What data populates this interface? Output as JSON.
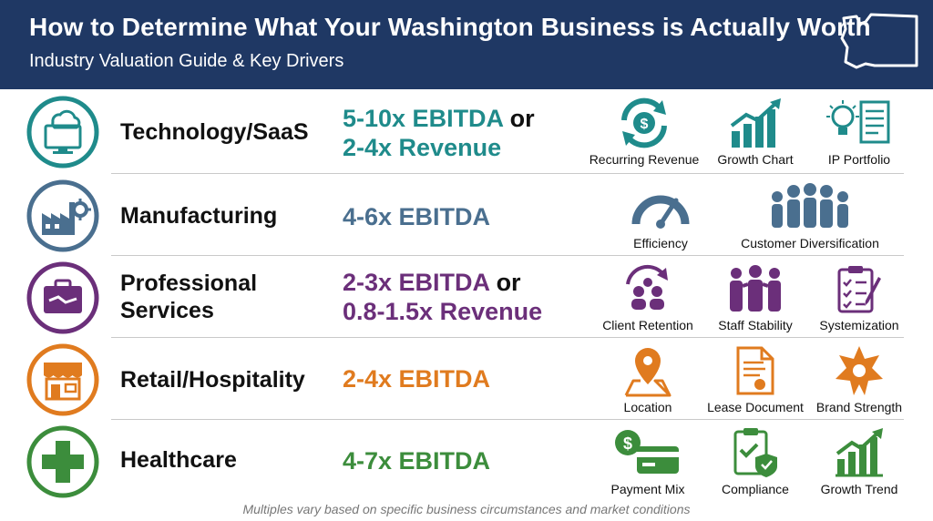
{
  "header": {
    "title": "How to Determine What Your Washington Business is Actually Worth",
    "subtitle": "Industry Valuation Guide & Key Drivers",
    "state_icon": "washington-state-outline-icon"
  },
  "colors": {
    "header_bg": "#1f3864",
    "technology": "#1f8b8b",
    "manufacturing": "#4a6f8f",
    "professional": "#6b2f7a",
    "retail": "#e07b1f",
    "healthcare": "#3c8d3c"
  },
  "industries": [
    {
      "name": "Technology/SaaS",
      "icon": "cloud-monitor-icon",
      "multiple_line1": "5-10x EBITDA",
      "multiple_or": "or",
      "multiple_line2": "2-4x Revenue",
      "drivers": [
        {
          "label": "Recurring Revenue",
          "icon": "recurring-revenue-icon"
        },
        {
          "label": "Growth Chart",
          "icon": "growth-chart-icon"
        },
        {
          "label": "IP Portfolio",
          "icon": "ip-portfolio-icon"
        }
      ]
    },
    {
      "name": "Manufacturing",
      "icon": "factory-gear-icon",
      "multiple_line1": "4-6x EBITDA",
      "drivers": [
        {
          "label": "Efficiency",
          "icon": "gauge-icon"
        },
        {
          "label": "Customer Diversification",
          "icon": "people-group-icon"
        }
      ]
    },
    {
      "name_line1": "Professional",
      "name_line2": "Services",
      "icon": "briefcase-handshake-icon",
      "multiple_line1": "2-3x EBITDA",
      "multiple_or": "or",
      "multiple_line2": "0.8-1.5x Revenue",
      "drivers": [
        {
          "label": "Client Retention",
          "icon": "client-retention-icon"
        },
        {
          "label": "Staff Stability",
          "icon": "staff-stability-icon"
        },
        {
          "label": "Systemization",
          "icon": "checklist-clipboard-icon"
        }
      ]
    },
    {
      "name": "Retail/Hospitality",
      "icon": "storefront-icon",
      "multiple_line1": "2-4x EBITDA",
      "drivers": [
        {
          "label": "Location",
          "icon": "map-pin-icon"
        },
        {
          "label": "Lease Document",
          "icon": "lease-document-icon"
        },
        {
          "label": "Brand Strength",
          "icon": "star-badge-icon"
        }
      ]
    },
    {
      "name": "Healthcare",
      "icon": "medical-cross-icon",
      "multiple_line1": "4-7x EBITDA",
      "drivers": [
        {
          "label": "Payment Mix",
          "icon": "payment-mix-icon"
        },
        {
          "label": "Compliance",
          "icon": "compliance-shield-icon"
        },
        {
          "label": "Growth Trend",
          "icon": "growth-trend-icon"
        }
      ]
    }
  ],
  "footer": "Multiples vary based on specific business circumstances and market conditions"
}
